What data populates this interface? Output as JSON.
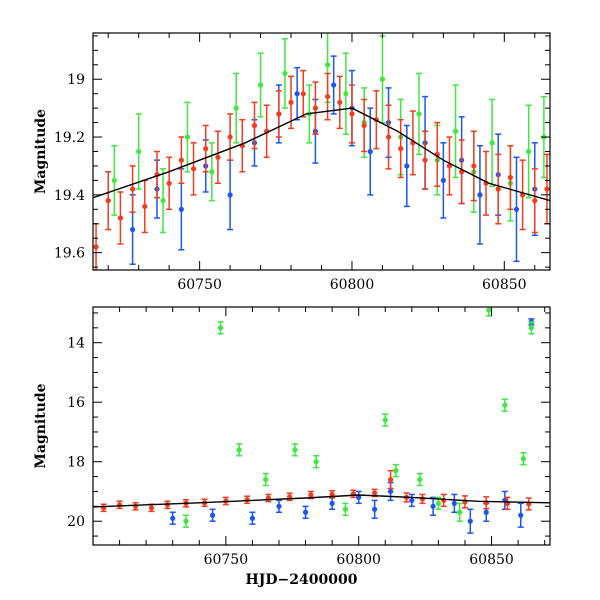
{
  "colors": {
    "blue": "#1a56f0",
    "green": "#3ee83e",
    "red": "#f23c1e",
    "frame": "#000000",
    "model": "#000000"
  },
  "chart_data": [
    {
      "type": "scatter",
      "title": "",
      "xlabel": "",
      "ylabel": "Magnitude",
      "xlim": [
        60715,
        60865
      ],
      "ylim": [
        19.66,
        18.84
      ],
      "y_inverted": true,
      "xticks": [
        60750,
        60800,
        60850
      ],
      "yticks": [
        19,
        19.2,
        19.4,
        19.6
      ],
      "xtick_labels": [
        "60750",
        "60800",
        "60850"
      ],
      "ytick_labels": [
        "19",
        "19.2",
        "19.4",
        "19.6"
      ],
      "grid": false,
      "legend": "none",
      "series": [
        {
          "color": "blue",
          "description": "blue-filter photometry with error bars",
          "points": [
            [
              60728,
              19.52
            ],
            [
              60736,
              19.38
            ],
            [
              60744,
              19.45
            ],
            [
              60752,
              19.3
            ],
            [
              60760,
              19.4
            ],
            [
              60768,
              19.22
            ],
            [
              60776,
              19.12
            ],
            [
              60782,
              19.05
            ],
            [
              60788,
              19.18
            ],
            [
              60794,
              19.02
            ],
            [
              60800,
              19.1
            ],
            [
              60806,
              19.25
            ],
            [
              60812,
              19.15
            ],
            [
              60818,
              19.3
            ],
            [
              60824,
              19.22
            ],
            [
              60830,
              19.35
            ],
            [
              60836,
              19.28
            ],
            [
              60842,
              19.4
            ],
            [
              60848,
              19.33
            ],
            [
              60854,
              19.45
            ],
            [
              60860,
              19.38
            ]
          ],
          "errors": [
            0.12,
            0.1,
            0.14,
            0.09,
            0.12,
            0.08,
            0.1,
            0.09,
            0.11,
            0.1,
            0.13,
            0.15,
            0.12,
            0.14,
            0.16,
            0.13,
            0.15,
            0.17,
            0.14,
            0.18,
            0.16
          ]
        },
        {
          "color": "green",
          "description": "green-filter photometry with error bars",
          "points": [
            [
              60722,
              19.35
            ],
            [
              60730,
              19.25
            ],
            [
              60738,
              19.42
            ],
            [
              60746,
              19.2
            ],
            [
              60754,
              19.32
            ],
            [
              60762,
              19.1
            ],
            [
              60770,
              19.02
            ],
            [
              60778,
              18.98
            ],
            [
              60786,
              19.12
            ],
            [
              60792,
              18.95
            ],
            [
              60798,
              19.05
            ],
            [
              60804,
              19.15
            ],
            [
              60810,
              19.0
            ],
            [
              60816,
              19.2
            ],
            [
              60822,
              19.12
            ],
            [
              60828,
              19.28
            ],
            [
              60834,
              19.18
            ],
            [
              60840,
              19.32
            ],
            [
              60846,
              19.22
            ],
            [
              60852,
              19.36
            ],
            [
              60858,
              19.25
            ],
            [
              60863,
              19.2
            ]
          ],
          "errors": [
            0.12,
            0.13,
            0.11,
            0.12,
            0.1,
            0.12,
            0.11,
            0.12,
            0.1,
            0.13,
            0.14,
            0.12,
            0.15,
            0.13,
            0.14,
            0.12,
            0.16,
            0.14,
            0.15,
            0.13,
            0.16,
            0.14
          ]
        },
        {
          "color": "red",
          "description": "red-filter photometry with error bars",
          "points": [
            [
              60716,
              19.58
            ],
            [
              60720,
              19.42
            ],
            [
              60724,
              19.48
            ],
            [
              60728,
              19.38
            ],
            [
              60732,
              19.44
            ],
            [
              60736,
              19.33
            ],
            [
              60740,
              19.36
            ],
            [
              60744,
              19.28
            ],
            [
              60748,
              19.31
            ],
            [
              60752,
              19.24
            ],
            [
              60756,
              19.27
            ],
            [
              60760,
              19.2
            ],
            [
              60764,
              19.23
            ],
            [
              60768,
              19.16
            ],
            [
              60772,
              19.18
            ],
            [
              60776,
              19.12
            ],
            [
              60780,
              19.08
            ],
            [
              60784,
              19.05
            ],
            [
              60788,
              19.1
            ],
            [
              60792,
              19.06
            ],
            [
              60796,
              19.08
            ],
            [
              60800,
              19.12
            ],
            [
              60804,
              19.16
            ],
            [
              60808,
              19.14
            ],
            [
              60812,
              19.2
            ],
            [
              60816,
              19.24
            ],
            [
              60820,
              19.22
            ],
            [
              60824,
              19.28
            ],
            [
              60828,
              19.26
            ],
            [
              60832,
              19.3
            ],
            [
              60836,
              19.32
            ],
            [
              60840,
              19.3
            ],
            [
              60844,
              19.36
            ],
            [
              60848,
              19.38
            ],
            [
              60852,
              19.34
            ],
            [
              60856,
              19.4
            ],
            [
              60860,
              19.42
            ],
            [
              60864,
              19.38
            ]
          ],
          "errors": [
            0.08,
            0.1,
            0.09,
            0.08,
            0.09,
            0.08,
            0.09,
            0.08,
            0.09,
            0.08,
            0.09,
            0.08,
            0.09,
            0.08,
            0.09,
            0.08,
            0.09,
            0.08,
            0.09,
            0.08,
            0.09,
            0.1,
            0.09,
            0.1,
            0.11,
            0.1,
            0.11,
            0.1,
            0.11,
            0.1,
            0.11,
            0.12,
            0.11,
            0.12,
            0.11,
            0.12,
            0.11,
            0.12
          ]
        }
      ],
      "model_curve": {
        "color": "model",
        "points": [
          [
            60715,
            19.41
          ],
          [
            60740,
            19.32
          ],
          [
            60765,
            19.22
          ],
          [
            60785,
            19.12
          ],
          [
            60800,
            19.1
          ],
          [
            60815,
            19.18
          ],
          [
            60830,
            19.28
          ],
          [
            60845,
            19.36
          ],
          [
            60865,
            19.42
          ]
        ]
      }
    },
    {
      "type": "scatter",
      "title": "",
      "xlabel": "HJD−2400000",
      "ylabel": "Magnitude",
      "xlim": [
        60700,
        60872
      ],
      "ylim": [
        20.8,
        12.8
      ],
      "y_inverted": true,
      "xticks": [
        60750,
        60800,
        60850
      ],
      "yticks": [
        14,
        16,
        18,
        20
      ],
      "xtick_labels": [
        "60750",
        "60800",
        "60850"
      ],
      "ytick_labels": [
        "14",
        "16",
        "18",
        "20"
      ],
      "grid": false,
      "legend": "none",
      "series": [
        {
          "color": "blue",
          "description": "blue-filter photometry with error bars",
          "points": [
            [
              60730,
              19.9
            ],
            [
              60745,
              19.8
            ],
            [
              60760,
              19.9
            ],
            [
              60770,
              19.5
            ],
            [
              60780,
              19.7
            ],
            [
              60790,
              19.4
            ],
            [
              60800,
              19.2
            ],
            [
              60806,
              19.6
            ],
            [
              60812,
              19.0
            ],
            [
              60820,
              19.3
            ],
            [
              60828,
              19.5
            ],
            [
              60836,
              19.4
            ],
            [
              60842,
              20.0
            ],
            [
              60848,
              19.7
            ],
            [
              60855,
              19.3
            ],
            [
              60861,
              19.8
            ],
            [
              60865,
              13.3
            ]
          ],
          "errors": [
            0.2,
            0.2,
            0.2,
            0.2,
            0.2,
            0.2,
            0.2,
            0.3,
            0.3,
            0.2,
            0.3,
            0.3,
            0.4,
            0.3,
            0.3,
            0.4,
            0.1
          ]
        },
        {
          "color": "green",
          "description": "green-filter photometry with error bars",
          "points": [
            [
              60735,
              20.0
            ],
            [
              60748,
              13.5
            ],
            [
              60755,
              17.6
            ],
            [
              60765,
              18.6
            ],
            [
              60776,
              17.6
            ],
            [
              60784,
              18.0
            ],
            [
              60795,
              19.6
            ],
            [
              60810,
              16.6
            ],
            [
              60814,
              18.3
            ],
            [
              60823,
              18.6
            ],
            [
              60830,
              19.4
            ],
            [
              60838,
              19.7
            ],
            [
              60849,
              12.9
            ],
            [
              60855,
              16.1
            ],
            [
              60862,
              17.9
            ],
            [
              60865,
              13.5
            ]
          ],
          "errors": [
            0.2,
            0.2,
            0.2,
            0.2,
            0.2,
            0.2,
            0.2,
            0.2,
            0.2,
            0.2,
            0.2,
            0.3,
            0.2,
            0.2,
            0.2,
            0.2
          ]
        },
        {
          "color": "red",
          "description": "red-filter photometry with error bars",
          "points": [
            [
              60704,
              19.55
            ],
            [
              60710,
              19.45
            ],
            [
              60716,
              19.5
            ],
            [
              60722,
              19.55
            ],
            [
              60728,
              19.45
            ],
            [
              60735,
              19.4
            ],
            [
              60742,
              19.38
            ],
            [
              60750,
              19.32
            ],
            [
              60758,
              19.28
            ],
            [
              60766,
              19.22
            ],
            [
              60774,
              19.18
            ],
            [
              60782,
              19.12
            ],
            [
              60790,
              19.1
            ],
            [
              60798,
              19.08
            ],
            [
              60806,
              19.05
            ],
            [
              60812,
              18.6
            ],
            [
              60818,
              19.2
            ],
            [
              60824,
              19.25
            ],
            [
              60832,
              19.3
            ],
            [
              60840,
              19.35
            ],
            [
              60848,
              19.38
            ],
            [
              60856,
              19.4
            ],
            [
              60864,
              19.42
            ]
          ],
          "errors": [
            0.12,
            0.12,
            0.12,
            0.12,
            0.12,
            0.12,
            0.12,
            0.12,
            0.12,
            0.12,
            0.12,
            0.12,
            0.12,
            0.12,
            0.12,
            0.3,
            0.15,
            0.15,
            0.2,
            0.2,
            0.2,
            0.2,
            0.2
          ]
        }
      ],
      "model_curve": {
        "color": "model",
        "points": [
          [
            60700,
            19.52
          ],
          [
            60740,
            19.38
          ],
          [
            60780,
            19.22
          ],
          [
            60800,
            19.12
          ],
          [
            60820,
            19.2
          ],
          [
            60845,
            19.33
          ],
          [
            60872,
            19.38
          ]
        ]
      }
    }
  ]
}
